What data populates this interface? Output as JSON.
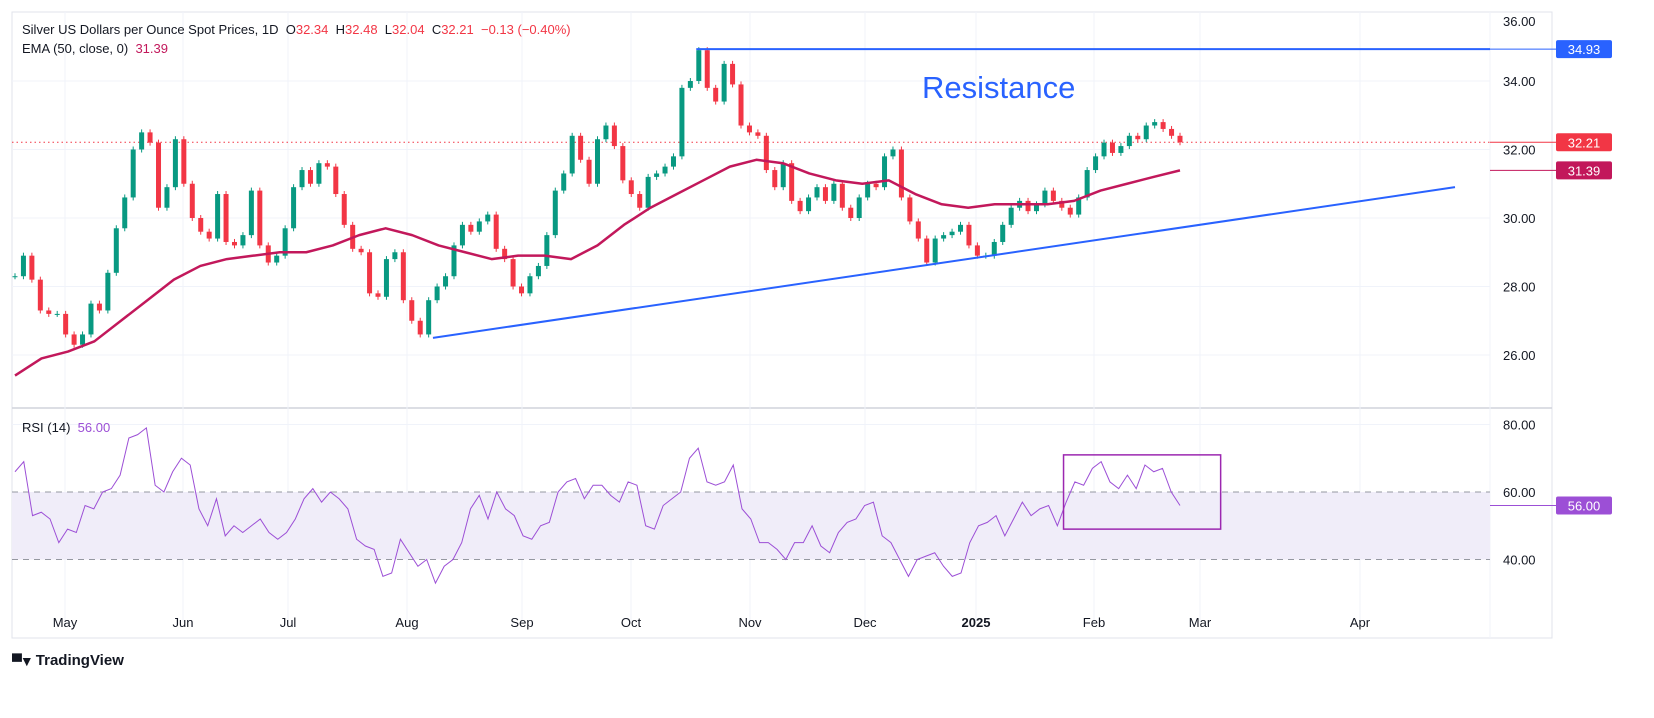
{
  "header": {
    "symbol": "Silver US Dollars per Ounce Spot Prices, 1D",
    "o_label": "O",
    "o": "32.34",
    "h_label": "H",
    "h": "32.48",
    "l_label": "L",
    "l": "32.04",
    "c_label": "C",
    "c": "32.21",
    "change": "−0.13 (−0.40%)",
    "ema_label": "EMA (50, close, 0)",
    "ema_value": "31.39",
    "rsi_label": "RSI (14)",
    "rsi_value": "56.00"
  },
  "brand": "TradingView",
  "annotation_text": "Resistance",
  "colors": {
    "up": "#089981",
    "down": "#f23645",
    "ema": "#c2185b",
    "rsi": "#9c4fd6",
    "trendline": "#2962ff",
    "rsi_band": "#f0edf9"
  },
  "chart_data": {
    "type": "candlestick",
    "title": "Silver US Dollars per Ounce Spot Prices, 1D",
    "x_ticks": [
      "May",
      "Jun",
      "Jul",
      "Aug",
      "Sep",
      "Oct",
      "Nov",
      "Dec",
      "2025",
      "Feb",
      "Mar",
      "Apr"
    ],
    "price_axis": {
      "ticks": [
        "26.00",
        "28.00",
        "30.00",
        "32.00",
        "34.00",
        "36.00"
      ],
      "ylim": [
        24.6,
        36.0
      ]
    },
    "closes": [
      28.3,
      28.9,
      28.2,
      27.3,
      27.2,
      27.2,
      26.6,
      26.3,
      26.6,
      27.5,
      27.3,
      28.4,
      29.7,
      30.6,
      32.0,
      32.5,
      32.2,
      30.3,
      30.9,
      32.3,
      31.0,
      30.0,
      29.6,
      29.4,
      30.7,
      29.3,
      29.2,
      29.5,
      30.8,
      29.2,
      28.7,
      28.9,
      29.7,
      30.9,
      31.4,
      31.0,
      31.6,
      31.5,
      30.7,
      29.8,
      29.1,
      29.0,
      27.8,
      27.7,
      28.8,
      29.0,
      27.6,
      27.0,
      26.6,
      27.6,
      28.0,
      28.3,
      29.2,
      29.8,
      29.6,
      29.9,
      30.1,
      29.1,
      28.8,
      28.0,
      27.8,
      28.3,
      28.6,
      29.5,
      30.8,
      31.3,
      32.4,
      31.7,
      31.0,
      32.3,
      32.7,
      32.1,
      31.1,
      30.7,
      30.3,
      31.2,
      31.3,
      31.5,
      31.8,
      33.8,
      34.0,
      34.9,
      33.8,
      33.4,
      34.5,
      33.9,
      32.7,
      32.5,
      32.4,
      31.4,
      30.9,
      31.6,
      30.5,
      30.2,
      30.6,
      30.9,
      30.5,
      31.0,
      30.3,
      30.0,
      30.6,
      31.0,
      30.9,
      31.8,
      32.0,
      30.6,
      29.9,
      29.4,
      28.7,
      29.4,
      29.5,
      29.6,
      29.8,
      29.2,
      28.9,
      28.9,
      29.3,
      29.8,
      30.3,
      30.5,
      30.2,
      30.4,
      30.8,
      30.5,
      30.3,
      30.1,
      30.6,
      31.4,
      31.8,
      32.2,
      31.9,
      32.1,
      32.4,
      32.3,
      32.7,
      32.8,
      32.6,
      32.4,
      32.21
    ],
    "ema50": [
      25.4,
      25.9,
      26.1,
      26.4,
      27.0,
      27.6,
      28.2,
      28.6,
      28.8,
      28.9,
      29.0,
      29.0,
      29.2,
      29.5,
      29.7,
      29.5,
      29.2,
      29.0,
      28.8,
      28.9,
      28.9,
      28.8,
      29.2,
      29.8,
      30.3,
      30.7,
      31.1,
      31.5,
      31.7,
      31.6,
      31.3,
      31.1,
      31.0,
      31.1,
      30.7,
      30.4,
      30.3,
      30.4,
      30.4,
      30.4,
      30.5,
      30.8,
      31.0,
      31.2,
      31.39
    ],
    "last_price": {
      "value": 32.21,
      "label": "32.21"
    },
    "ema_last": {
      "value": 31.39,
      "label": "31.39"
    },
    "resistance": {
      "value": 34.93,
      "label": "34.93",
      "start": "2024-10-18"
    },
    "support_line": {
      "start": {
        "date": "2024-08-08",
        "value": 26.5
      },
      "end": {
        "date": "2025-04-20",
        "value": 30.9
      }
    },
    "rsi": {
      "axis_ticks": [
        "40.00",
        "60.00",
        "80.00"
      ],
      "ylim": [
        28,
        86
      ],
      "band": [
        40,
        60
      ],
      "last": {
        "value": 56.0,
        "label": "56.00"
      },
      "values": [
        66,
        69,
        53,
        54,
        52,
        45,
        49,
        48,
        56,
        55,
        60,
        61,
        65,
        76,
        77,
        79,
        62,
        60,
        66,
        70,
        68,
        55,
        50,
        58,
        47,
        50,
        48,
        50,
        52,
        48,
        46,
        48,
        52,
        58,
        61,
        57,
        60,
        58,
        55,
        46,
        44,
        43,
        35,
        36,
        46,
        42,
        38,
        40,
        33,
        38,
        40,
        45,
        55,
        59,
        52,
        60,
        55,
        53,
        47,
        46,
        50,
        51,
        60,
        63,
        64,
        58,
        62,
        62,
        59,
        57,
        63,
        62,
        50,
        49,
        56,
        58,
        60,
        70,
        73,
        63,
        62,
        63,
        68,
        55,
        52,
        45,
        45,
        43,
        40,
        45,
        45,
        50,
        44,
        42,
        48,
        51,
        52,
        56,
        57,
        47,
        45,
        40,
        35,
        40,
        41,
        42,
        38,
        35,
        36,
        45,
        50,
        51,
        53,
        47,
        52,
        57,
        53,
        55,
        56,
        50,
        57,
        63,
        62,
        67,
        69,
        63,
        61,
        65,
        61,
        68,
        66,
        67,
        60,
        56
      ],
      "highlight_box": {
        "start": "2025-01-24",
        "end": "2025-03-05",
        "top": 71,
        "bottom": 49
      }
    }
  }
}
